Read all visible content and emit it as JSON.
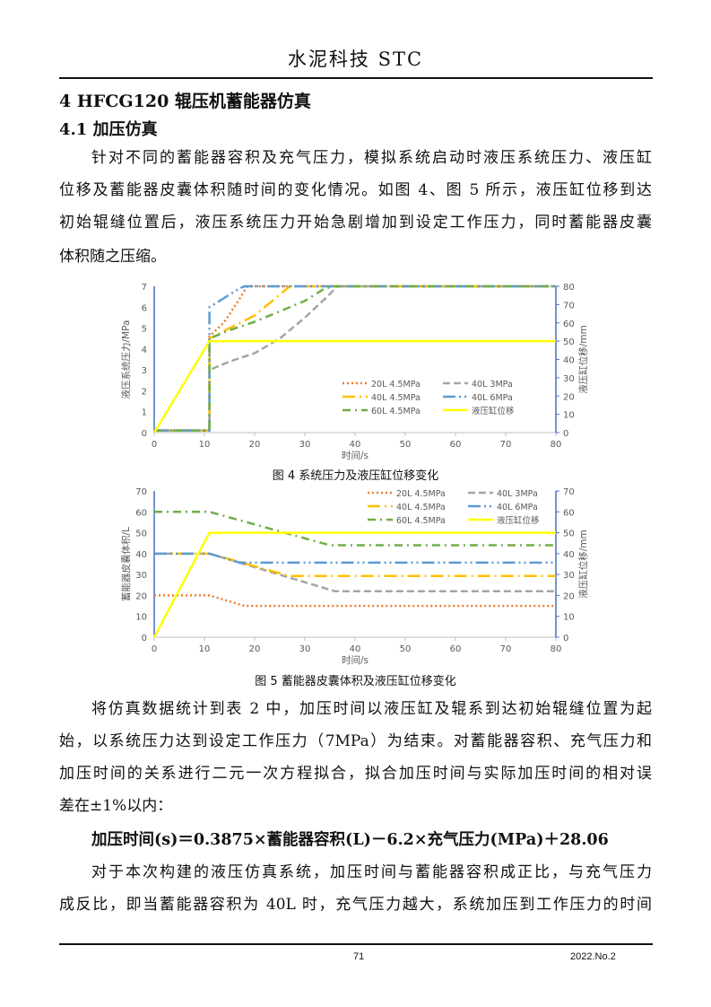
{
  "header": {
    "journal": "水泥科技 STC"
  },
  "section": {
    "heading": "4 HFCG120 辊压机蓄能器仿真",
    "subheading": "4.1 加压仿真"
  },
  "para1": [
    "针对不同的蓄能器容积及充气压力，模拟系统启动时液压系统压力、液压缸",
    "位移及蓄能器皮囊体积随时间的变化情况。如图 4、图 5 所示，液压缸位移到达",
    "初始辊缝位置后，液压系统压力开始急剧增加到设定工作压力，同时蓄能器皮囊",
    "体积随之压缩。"
  ],
  "para2": [
    "将仿真数据统计到表 2 中，加压时间以液压缸及辊系到达初始辊缝位置为起",
    "始，以系统压力达到设定工作压力（7MPa）为结束。对蓄能器容积、充气压力和",
    "加压时间的关系进行二元一次方程拟合，拟合加压时间与实际加压时间的相对误",
    "差在±1%以内："
  ],
  "formula": "加压时间(s)＝0.3875×蓄能器容积(L)－6.2×充气压力(MPa)＋28.06",
  "para3": [
    "对于本次构建的液压仿真系统，加压时间与蓄能器容积成正比，与充气压力",
    "成反比，即当蓄能器容积为 40L 时，充气压力越大，系统加压到工作压力的时间"
  ],
  "footer": {
    "page": "71",
    "issue": "2022.No.2"
  },
  "chart_data": [
    {
      "type": "line",
      "caption": "图 4 系统压力及液压缸位移变化",
      "xlabel": "时间/s",
      "ylabel": "液压系统压力/MPa",
      "y2label": "液压缸位移/mm",
      "xlim": [
        0,
        80
      ],
      "ylim": [
        0,
        7
      ],
      "y2lim": [
        0,
        80
      ],
      "xticks": [
        0,
        10,
        20,
        30,
        40,
        50,
        60,
        70,
        80
      ],
      "yticks": [
        0,
        1,
        2,
        3,
        4,
        5,
        6,
        7
      ],
      "y2ticks": [
        0,
        10,
        20,
        30,
        40,
        50,
        60,
        70,
        80
      ],
      "grid": false,
      "legend": "center-right",
      "series": [
        {
          "name": "20L 4.5MPa",
          "color": "#ED7D31",
          "style": "dotted",
          "axis": "left",
          "x": [
            0,
            11,
            11,
            14,
            17,
            18.5,
            80
          ],
          "y": [
            0.1,
            0.1,
            4.6,
            5.3,
            6.4,
            7,
            7
          ]
        },
        {
          "name": "40L 3MPa",
          "color": "#A5A5A5",
          "style": "dashed",
          "axis": "left",
          "x": [
            0,
            11,
            11,
            15,
            20,
            25,
            30,
            34,
            36.5,
            80
          ],
          "y": [
            0.1,
            0.1,
            3,
            3.4,
            3.8,
            4.5,
            5.5,
            6.4,
            7,
            7
          ]
        },
        {
          "name": "40L 4.5MPa",
          "color": "#FFC000",
          "style": "long-dash-dot",
          "axis": "left",
          "x": [
            0,
            11,
            11,
            15,
            20,
            24,
            27,
            80
          ],
          "y": [
            0.1,
            0.1,
            4.5,
            5,
            5.6,
            6.4,
            7,
            7
          ]
        },
        {
          "name": "40L 6MPa",
          "color": "#5B9BD5",
          "style": "long-dash-dot-dot",
          "axis": "left",
          "x": [
            0,
            11,
            11,
            13,
            17,
            18,
            80
          ],
          "y": [
            0.1,
            0.1,
            6,
            6.3,
            6.9,
            7,
            7
          ]
        },
        {
          "name": "60L 4.5MPa",
          "color": "#70AD47",
          "style": "dash-dot",
          "axis": "left",
          "x": [
            0,
            11,
            11,
            15,
            20,
            25,
            30,
            34,
            36,
            80
          ],
          "y": [
            0.1,
            0.1,
            4.5,
            4.9,
            5.3,
            5.8,
            6.3,
            6.9,
            7,
            7
          ]
        },
        {
          "name": "液压缸位移",
          "color": "#FFFF00",
          "style": "solid",
          "axis": "right",
          "x": [
            0,
            11,
            80
          ],
          "y": [
            0,
            50,
            50
          ]
        }
      ]
    },
    {
      "type": "line",
      "caption": "图 5 蓄能器皮囊体积及液压缸位移变化",
      "xlabel": "时间/s",
      "ylabel": "蓄能器皮囊体积/L",
      "y2label": "液压缸位移/mm",
      "xlim": [
        0,
        80
      ],
      "ylim": [
        0,
        70
      ],
      "y2lim": [
        0,
        70
      ],
      "xticks": [
        0,
        10,
        20,
        30,
        40,
        50,
        60,
        70,
        80
      ],
      "yticks": [
        0,
        10,
        20,
        30,
        40,
        50,
        60,
        70
      ],
      "y2ticks": [
        0,
        10,
        20,
        30,
        40,
        50,
        60,
        70
      ],
      "grid": false,
      "legend": "top-right",
      "series": [
        {
          "name": "20L 4.5MPa",
          "color": "#ED7D31",
          "style": "dotted",
          "axis": "left",
          "x": [
            0,
            11,
            18,
            80
          ],
          "y": [
            20,
            20,
            15,
            15
          ]
        },
        {
          "name": "40L 3MPa",
          "color": "#A5A5A5",
          "style": "dashed",
          "axis": "left",
          "x": [
            0,
            11,
            36,
            80
          ],
          "y": [
            40,
            40,
            22,
            22
          ]
        },
        {
          "name": "40L 4.5MPa",
          "color": "#FFC000",
          "style": "long-dash-dot",
          "axis": "left",
          "x": [
            0,
            11,
            27,
            80
          ],
          "y": [
            40,
            40,
            29.3,
            29.3
          ]
        },
        {
          "name": "40L 6MPa",
          "color": "#5B9BD5",
          "style": "long-dash-dot-dot",
          "axis": "left",
          "x": [
            0,
            11,
            17,
            80
          ],
          "y": [
            40,
            40,
            35.7,
            35.7
          ]
        },
        {
          "name": "60L 4.5MPa",
          "color": "#70AD47",
          "style": "dash-dot",
          "axis": "left",
          "x": [
            0,
            11,
            35,
            80
          ],
          "y": [
            60,
            60,
            44,
            44
          ]
        },
        {
          "name": "液压缸位移",
          "color": "#FFFF00",
          "style": "solid",
          "axis": "right",
          "x": [
            0,
            11,
            80
          ],
          "y": [
            0,
            50,
            50
          ]
        }
      ]
    }
  ]
}
